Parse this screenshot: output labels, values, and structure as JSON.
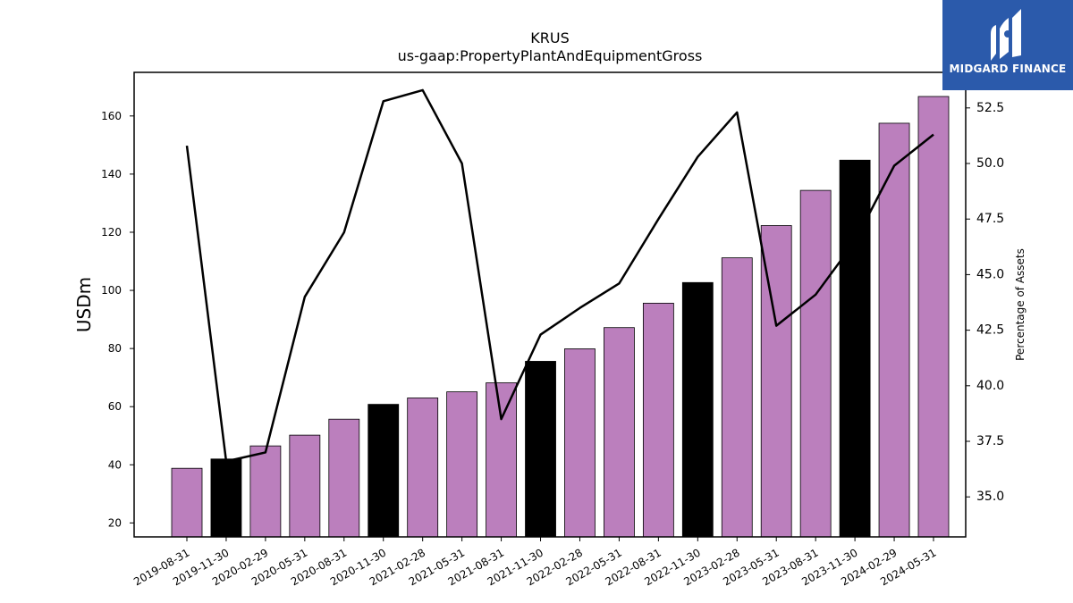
{
  "logo": {
    "text": "MIDGARD FINANCE",
    "color": "#2b5aab"
  },
  "chart_data": {
    "type": "bar",
    "title": "KRUS",
    "subtitle": "us-gaap:PropertyPlantAndEquipmentGross",
    "ylabel": "USDm",
    "y2label": "Percentage of Assets",
    "categories": [
      "2019-08-31",
      "2019-11-30",
      "2020-02-29",
      "2020-05-31",
      "2020-08-31",
      "2020-11-30",
      "2021-02-28",
      "2021-05-31",
      "2021-08-31",
      "2021-11-30",
      "2022-02-28",
      "2022-05-31",
      "2022-08-31",
      "2022-11-30",
      "2023-02-28",
      "2023-05-31",
      "2023-08-31",
      "2023-11-30",
      "2024-02-29",
      "2024-05-31"
    ],
    "series": [
      {
        "type": "bar",
        "values": [
          38.8,
          42.0,
          46.5,
          50.2,
          55.7,
          60.8,
          63.0,
          65.1,
          68.2,
          75.6,
          79.9,
          87.2,
          95.6,
          102.7,
          111.2,
          122.3,
          134.4,
          144.8,
          157.5,
          166.7
        ],
        "highlight": [
          false,
          true,
          false,
          false,
          false,
          true,
          false,
          false,
          false,
          true,
          false,
          false,
          false,
          true,
          false,
          false,
          false,
          true,
          false,
          false
        ],
        "color": "#bb7fbd",
        "highlight_color": "#000000"
      },
      {
        "type": "line",
        "axis": "right",
        "values": [
          50.8,
          36.6,
          37.0,
          44.0,
          46.9,
          52.8,
          53.3,
          50.0,
          38.5,
          42.3,
          43.5,
          44.6,
          47.5,
          50.3,
          52.3,
          42.7,
          44.1,
          46.5,
          49.9,
          51.3
        ],
        "color": "#000000"
      }
    ],
    "ylim": [
      15.2,
      175
    ],
    "yticks": [
      20,
      40,
      60,
      80,
      100,
      120,
      140,
      160
    ],
    "y2lim": [
      33.2,
      54.1
    ],
    "y2ticks": [
      "35.0",
      "37.5",
      "40.0",
      "42.5",
      "45.0",
      "47.5",
      "50.0",
      "52.5"
    ],
    "grid": false
  }
}
